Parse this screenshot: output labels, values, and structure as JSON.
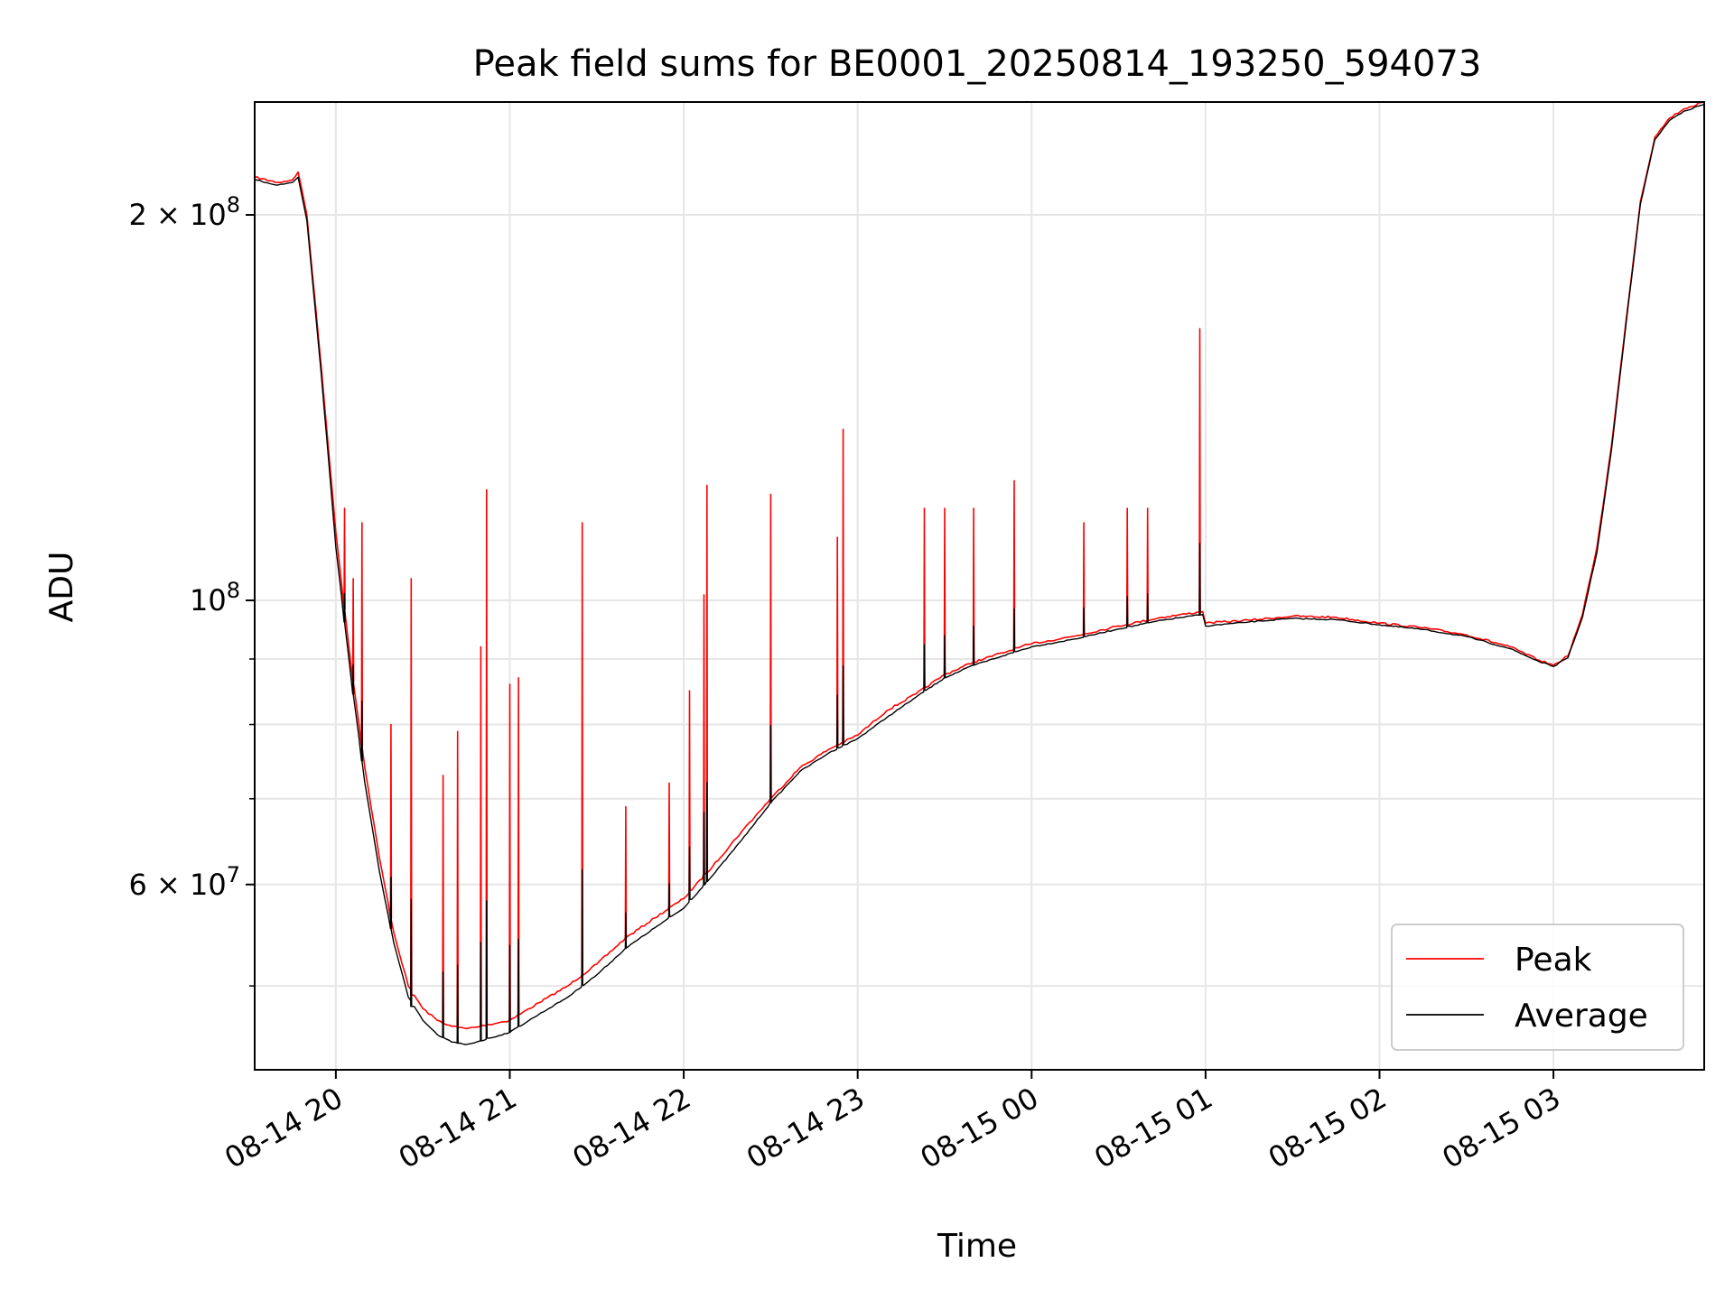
{
  "chart_data": {
    "type": "line",
    "title": "Peak field sums for BE0001_20250814_193250_594073",
    "xlabel": "Time",
    "ylabel": "ADU",
    "yscale": "log",
    "grid": true,
    "legend_placement": "lower-right",
    "x_range": [
      "2025-08-14 19:32",
      "2025-08-15 03:52"
    ],
    "ylim": [
      43000000,
      245000000
    ],
    "x_ticks": [
      {
        "t": "2025-08-14 20:00",
        "label": "08-14 20"
      },
      {
        "t": "2025-08-14 21:00",
        "label": "08-14 21"
      },
      {
        "t": "2025-08-14 22:00",
        "label": "08-14 22"
      },
      {
        "t": "2025-08-14 23:00",
        "label": "08-14 23"
      },
      {
        "t": "2025-08-15 00:00",
        "label": "08-15 00"
      },
      {
        "t": "2025-08-15 01:00",
        "label": "08-15 01"
      },
      {
        "t": "2025-08-15 02:00",
        "label": "08-15 02"
      },
      {
        "t": "2025-08-15 03:00",
        "label": "08-15 03"
      }
    ],
    "y_ticks": [
      {
        "value": 200000000,
        "mantissa": "2",
        "exponent": "8"
      },
      {
        "value": 100000000,
        "mantissa": "",
        "exponent": "8"
      },
      {
        "value": 60000000,
        "mantissa": "6",
        "exponent": "7"
      }
    ],
    "y_minor_ticks": [
      50000000,
      70000000,
      80000000,
      90000000
    ],
    "series": [
      {
        "name": "Peak",
        "color": "#ff0000",
        "x": [
          "2025-08-14 19:32",
          "2025-08-14 19:40",
          "2025-08-14 19:45",
          "2025-08-14 19:47",
          "2025-08-14 19:50",
          "2025-08-14 19:55",
          "2025-08-14 20:00",
          "2025-08-14 20:05",
          "2025-08-14 20:10",
          "2025-08-14 20:15",
          "2025-08-14 20:20",
          "2025-08-14 20:25",
          "2025-08-14 20:30",
          "2025-08-14 20:35",
          "2025-08-14 20:40",
          "2025-08-14 20:45",
          "2025-08-14 20:50",
          "2025-08-14 21:00",
          "2025-08-14 21:10",
          "2025-08-14 21:20",
          "2025-08-14 21:30",
          "2025-08-14 21:40",
          "2025-08-14 21:50",
          "2025-08-14 22:00",
          "2025-08-14 22:10",
          "2025-08-14 22:20",
          "2025-08-14 22:30",
          "2025-08-14 22:40",
          "2025-08-14 22:50",
          "2025-08-14 23:00",
          "2025-08-14 23:10",
          "2025-08-14 23:20",
          "2025-08-14 23:30",
          "2025-08-14 23:40",
          "2025-08-14 23:50",
          "2025-08-15 00:00",
          "2025-08-15 00:15",
          "2025-08-15 00:30",
          "2025-08-15 00:45",
          "2025-08-15 00:59",
          "2025-08-15 01:00",
          "2025-08-15 01:15",
          "2025-08-15 01:30",
          "2025-08-15 01:45",
          "2025-08-15 02:00",
          "2025-08-15 02:15",
          "2025-08-15 02:30",
          "2025-08-15 02:45",
          "2025-08-15 02:55",
          "2025-08-15 03:00",
          "2025-08-15 03:05",
          "2025-08-15 03:10",
          "2025-08-15 03:15",
          "2025-08-15 03:20",
          "2025-08-15 03:25",
          "2025-08-15 03:30",
          "2025-08-15 03:35",
          "2025-08-15 03:40",
          "2025-08-15 03:45",
          "2025-08-15 03:52"
        ],
        "values": [
          214000000,
          212000000,
          213000000,
          216000000,
          200000000,
          152000000,
          113000000,
          90000000,
          74000000,
          63000000,
          55000000,
          50000000,
          48000000,
          47000000,
          46500000,
          46300000,
          46500000,
          47000000,
          48500000,
          50000000,
          52000000,
          54500000,
          56500000,
          58500000,
          62000000,
          66000000,
          70000000,
          74000000,
          76500000,
          78500000,
          82000000,
          84500000,
          87500000,
          89500000,
          91000000,
          92500000,
          93800000,
          95500000,
          97000000,
          98000000,
          96000000,
          96500000,
          97200000,
          97000000,
          96000000,
          95200000,
          94000000,
          92000000,
          89800000,
          89000000,
          90500000,
          97500000,
          110000000,
          132000000,
          165000000,
          205000000,
          230000000,
          238000000,
          242000000,
          245000000
        ]
      },
      {
        "name": "Average",
        "color": "#000000",
        "x": [
          "2025-08-14 19:32",
          "2025-08-14 19:40",
          "2025-08-14 19:45",
          "2025-08-14 19:47",
          "2025-08-14 19:50",
          "2025-08-14 19:55",
          "2025-08-14 20:00",
          "2025-08-14 20:05",
          "2025-08-14 20:10",
          "2025-08-14 20:15",
          "2025-08-14 20:20",
          "2025-08-14 20:25",
          "2025-08-14 20:30",
          "2025-08-14 20:35",
          "2025-08-14 20:40",
          "2025-08-14 20:45",
          "2025-08-14 20:50",
          "2025-08-14 21:00",
          "2025-08-14 21:10",
          "2025-08-14 21:20",
          "2025-08-14 21:30",
          "2025-08-14 21:40",
          "2025-08-14 21:50",
          "2025-08-14 22:00",
          "2025-08-14 22:10",
          "2025-08-14 22:20",
          "2025-08-14 22:30",
          "2025-08-14 22:40",
          "2025-08-14 22:50",
          "2025-08-14 23:00",
          "2025-08-14 23:10",
          "2025-08-14 23:20",
          "2025-08-14 23:30",
          "2025-08-14 23:40",
          "2025-08-14 23:50",
          "2025-08-15 00:00",
          "2025-08-15 00:15",
          "2025-08-15 00:30",
          "2025-08-15 00:45",
          "2025-08-15 00:59",
          "2025-08-15 01:00",
          "2025-08-15 01:15",
          "2025-08-15 01:30",
          "2025-08-15 01:45",
          "2025-08-15 02:00",
          "2025-08-15 02:15",
          "2025-08-15 02:30",
          "2025-08-15 02:45",
          "2025-08-15 02:55",
          "2025-08-15 03:00",
          "2025-08-15 03:05",
          "2025-08-15 03:10",
          "2025-08-15 03:15",
          "2025-08-15 03:20",
          "2025-08-15 03:25",
          "2025-08-15 03:30",
          "2025-08-15 03:35",
          "2025-08-15 03:40",
          "2025-08-15 03:45",
          "2025-08-15 03:52"
        ],
        "values": [
          213000000,
          211000000,
          212000000,
          214000000,
          198000000,
          150000000,
          110000000,
          88000000,
          72000000,
          61500000,
          54000000,
          49000000,
          47000000,
          45800000,
          45200000,
          45000000,
          45300000,
          46000000,
          47500000,
          49000000,
          51000000,
          53500000,
          55500000,
          57500000,
          61000000,
          65000000,
          69500000,
          73500000,
          76000000,
          78000000,
          81000000,
          84000000,
          87000000,
          89000000,
          90500000,
          92000000,
          93300000,
          95000000,
          96500000,
          97500000,
          95500000,
          96200000,
          96800000,
          96600000,
          95700000,
          94900000,
          93700000,
          91700000,
          89600000,
          88800000,
          90200000,
          97000000,
          109000000,
          131000000,
          164000000,
          204000000,
          229000000,
          237000000,
          241000000,
          244000000
        ]
      }
    ],
    "spikes": [
      {
        "t": "2025-08-14 20:03",
        "peak": 118000000
      },
      {
        "t": "2025-08-14 20:06",
        "peak": 104000000
      },
      {
        "t": "2025-08-14 20:09",
        "peak": 115000000
      },
      {
        "t": "2025-08-14 20:19",
        "peak": 80000000
      },
      {
        "t": "2025-08-14 20:26",
        "peak": 104000000
      },
      {
        "t": "2025-08-14 20:37",
        "peak": 73000000
      },
      {
        "t": "2025-08-14 20:42",
        "peak": 79000000
      },
      {
        "t": "2025-08-14 20:50",
        "peak": 92000000
      },
      {
        "t": "2025-08-14 20:52",
        "peak": 122000000
      },
      {
        "t": "2025-08-14 21:00",
        "peak": 86000000
      },
      {
        "t": "2025-08-14 21:03",
        "peak": 87000000
      },
      {
        "t": "2025-08-14 21:25",
        "peak": 115000000
      },
      {
        "t": "2025-08-14 21:40",
        "peak": 69000000
      },
      {
        "t": "2025-08-14 21:55",
        "peak": 72000000
      },
      {
        "t": "2025-08-14 22:02",
        "peak": 85000000
      },
      {
        "t": "2025-08-14 22:07",
        "peak": 101000000
      },
      {
        "t": "2025-08-14 22:08",
        "peak": 123000000
      },
      {
        "t": "2025-08-14 22:30",
        "peak": 121000000
      },
      {
        "t": "2025-08-14 22:53",
        "peak": 112000000
      },
      {
        "t": "2025-08-14 22:55",
        "peak": 136000000
      },
      {
        "t": "2025-08-14 23:23",
        "peak": 118000000
      },
      {
        "t": "2025-08-14 23:30",
        "peak": 118000000
      },
      {
        "t": "2025-08-14 23:40",
        "peak": 118000000
      },
      {
        "t": "2025-08-14 23:54",
        "peak": 124000000
      },
      {
        "t": "2025-08-15 00:18",
        "peak": 115000000
      },
      {
        "t": "2025-08-15 00:33",
        "peak": 118000000
      },
      {
        "t": "2025-08-15 00:40",
        "peak": 118000000
      },
      {
        "t": "2025-08-15 00:58",
        "peak": 163000000
      }
    ]
  }
}
